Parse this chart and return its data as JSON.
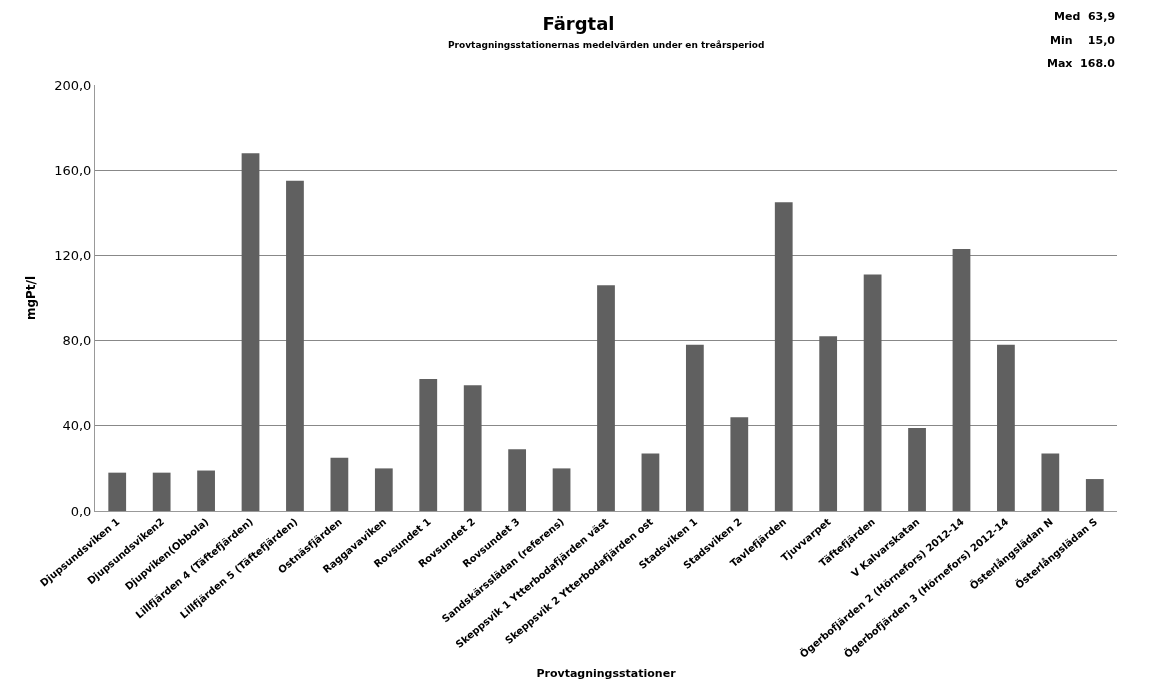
{
  "chart_data": {
    "type": "bar",
    "title": "Färgtal",
    "subtitle": "Provtagningsstationernas medelvärden under en treårsperiod",
    "xlabel": "Provtagningsstationer",
    "ylabel": "mgPt/l",
    "annotations": [
      "Med  63,9",
      "Min    15,0",
      "Max  168.0"
    ],
    "categories": [
      "Djupsundsviken 1",
      "Djupsundsviken2",
      "Djupviken(Obbola)",
      "Lillfjärden 4 (Täftefjärden)",
      "Lillfjärden 5 (Täftefjärden)",
      "Ostnäsfjärden",
      "Raggavaviken",
      "Rovsundet 1",
      "Rovsundet 2",
      "Rovsundet 3",
      "Sandskärsslädan (referens)",
      "Skeppsvik 1 Ytterbodafjärden väst",
      "Skeppsvik 2 Ytterbodafjärden ost",
      "Stadsviken 1",
      "Stadsviken 2",
      "Tavlefjärden",
      "Tjuvvarpet",
      "Täftefjärden",
      "V Kalvarskatan",
      "Ögerbofjärden 2 (Hörnefors) 2012-14",
      "Ögerbofjärden 3 (Hörnefors) 2012-14",
      "Österlångslädan N",
      "Österlångslädan S"
    ],
    "values": [
      18,
      18,
      19,
      168,
      155,
      25,
      20,
      62,
      59,
      29,
      20,
      106,
      27,
      78,
      44,
      145,
      82,
      111,
      39,
      123,
      78,
      27,
      15
    ],
    "color": "#606060",
    "ylim": [
      0,
      200
    ],
    "yticks": [
      {
        "value": 0,
        "label": "0,0"
      },
      {
        "value": 40,
        "label": "40,0"
      },
      {
        "value": 80,
        "label": "80,0"
      },
      {
        "value": 120,
        "label": "120,0"
      },
      {
        "value": 160,
        "label": "160,0"
      },
      {
        "value": 200,
        "label": "200,0"
      }
    ],
    "grid": "y",
    "legend": false
  }
}
